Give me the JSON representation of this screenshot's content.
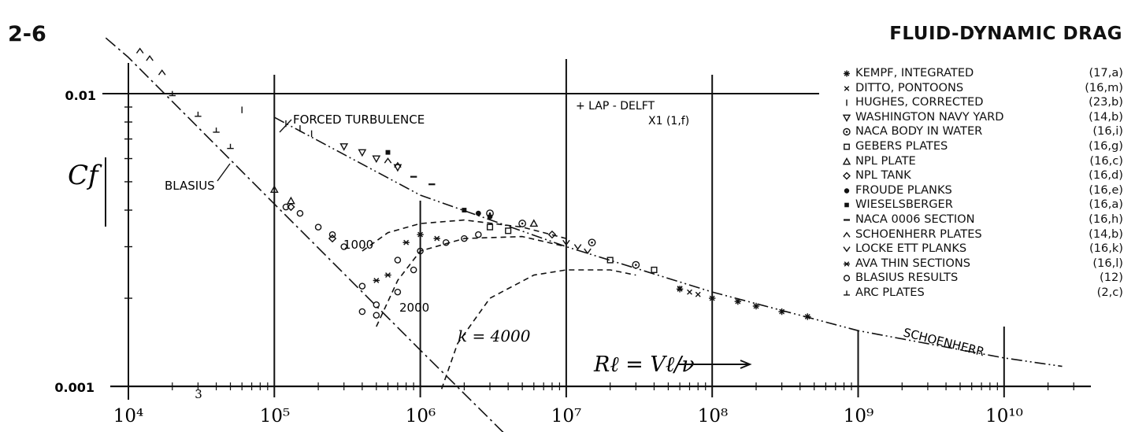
{
  "page": {
    "number": "2-6",
    "title": "FLUID-DYNAMIC DRAG"
  },
  "chart_data": {
    "type": "line",
    "title": "",
    "ylabel": "Cf",
    "xlabel": "Rℓ = Vℓ/ν",
    "x_scale": "log",
    "y_scale": "log",
    "xlim": [
      7000,
      30000000000
    ],
    "ylim": [
      0.00088,
      0.0136
    ],
    "x_tick_labels": [
      "10⁴",
      "3",
      "10⁵",
      "10⁶",
      "10⁷",
      "10⁸",
      "10⁹",
      "10¹⁰"
    ],
    "y_tick_labels": [
      "0.01",
      "0.001"
    ],
    "annotations": {
      "forced_turbulence": "FORCED TURBULENCE",
      "lap_delft": "+ LAP - DELFT",
      "lap_delft_ref": "X1 (1,f)",
      "blasius": "BLASIUS",
      "schoenherr": "SCHOENHERR",
      "k1000": "1000",
      "k2000": "2000",
      "k4000": "k = 4000"
    },
    "series": [
      {
        "name": "SCHOENHERR",
        "style": "dash-dot-dot",
        "x": [
          100000.0,
          1000000.0,
          10000000.0,
          100000000.0,
          1000000000.0,
          10000000000.0,
          25000000000.0
        ],
        "y": [
          0.0083,
          0.0045,
          0.003,
          0.0021,
          0.00155,
          0.00125,
          0.00117
        ]
      },
      {
        "name": "BLASIUS",
        "style": "dash-dot",
        "x": [
          7000,
          10000.0,
          100000.0,
          1000000.0,
          4000000.0
        ],
        "y": [
          0.0155,
          0.0133,
          0.0042,
          0.00133,
          0.00067
        ]
      },
      {
        "name": "1000",
        "style": "dashed",
        "x": [
          400000.0,
          600000.0,
          1000000.0,
          2000000.0,
          5000000.0,
          10000000.0
        ],
        "y": [
          0.0029,
          0.00335,
          0.0036,
          0.0037,
          0.0035,
          0.0032
        ]
      },
      {
        "name": "2000",
        "style": "dashed",
        "x": [
          500000.0,
          700000.0,
          1000000.0,
          2000000.0,
          5000000.0,
          10000000.0
        ],
        "y": [
          0.0016,
          0.0023,
          0.0029,
          0.0032,
          0.00325,
          0.003
        ]
      },
      {
        "name": "k = 4000",
        "style": "dashed",
        "x": [
          1400000.0,
          1800000.0,
          3000000.0,
          6000000.0,
          10000000.0,
          20000000.0,
          30000000.0
        ],
        "y": [
          0.00098,
          0.0014,
          0.002,
          0.0024,
          0.0025,
          0.0025,
          0.0024
        ]
      }
    ],
    "legend": [
      {
        "symbol": "asterisk",
        "name": "KEMPF, INTEGRATED",
        "ref": "(17,a)",
        "x": [
          60000000.0,
          100000000.0,
          150000000.0,
          200000000.0,
          300000000.0,
          450000000.0
        ],
        "y": [
          0.00215,
          0.002,
          0.00195,
          0.00188,
          0.0018,
          0.00173
        ]
      },
      {
        "symbol": "cross",
        "name": "DITTO, PONTOONS",
        "ref": "(16,m)",
        "x": [
          60000000.0,
          70000000.0,
          80000000.0
        ],
        "y": [
          0.00216,
          0.0021,
          0.00206
        ]
      },
      {
        "symbol": "bar",
        "name": "HUGHES, CORRECTED",
        "ref": "(23,b)",
        "x": [
          60000.0,
          120000.0,
          150000.0,
          180000.0
        ],
        "y": [
          0.0088,
          0.0079,
          0.0076,
          0.0073
        ]
      },
      {
        "symbol": "tri-down",
        "name": "WASHINGTON NAVY YARD",
        "ref": "(14,b)",
        "x": [
          300000.0,
          400000.0,
          500000.0,
          700000.0
        ],
        "y": [
          0.0066,
          0.0063,
          0.006,
          0.0056
        ]
      },
      {
        "symbol": "circle-dot",
        "name": "NACA BODY IN WATER",
        "ref": "(16,i)",
        "x": [
          3000000.0,
          5000000.0,
          15000000.0,
          30000000.0
        ],
        "y": [
          0.0039,
          0.0036,
          0.0031,
          0.0026
        ]
      },
      {
        "symbol": "square",
        "name": "GEBERS PLATES",
        "ref": "(16,g)",
        "x": [
          3000000.0,
          4000000.0,
          20000000.0,
          40000000.0
        ],
        "y": [
          0.0035,
          0.0034,
          0.0027,
          0.0025
        ]
      },
      {
        "symbol": "triangle",
        "name": "NPL PLATE",
        "ref": "(16,c)",
        "x": [
          100000.0,
          130000.0,
          6000000.0
        ],
        "y": [
          0.0047,
          0.0043,
          0.0036
        ]
      },
      {
        "symbol": "diamond",
        "name": "NPL TANK",
        "ref": "(16,d)",
        "x": [
          130000.0,
          250000.0,
          8000000.0
        ],
        "y": [
          0.0041,
          0.0032,
          0.0033
        ]
      },
      {
        "symbol": "dot",
        "name": "FROUDE PLANKS",
        "ref": "(16,e)",
        "x": [
          2500000.0,
          3000000.0
        ],
        "y": [
          0.0039,
          0.0038
        ]
      },
      {
        "symbol": "filled-square",
        "name": "WIESELSBERGER",
        "ref": "(16,a)",
        "x": [
          600000.0,
          2000000.0
        ],
        "y": [
          0.0063,
          0.004
        ]
      },
      {
        "symbol": "dash",
        "name": "NACA 0006 SECTION",
        "ref": "(16,h)",
        "x": [
          900000.0,
          1200000.0
        ],
        "y": [
          0.0052,
          0.0049
        ]
      },
      {
        "symbol": "caret-up",
        "name": "SCHOENHERR PLATES",
        "ref": "(14,b)",
        "x": [
          12000.0,
          14000.0,
          17000.0,
          600000.0,
          700000.0
        ],
        "y": [
          0.014,
          0.0132,
          0.0118,
          0.0059,
          0.0057
        ]
      },
      {
        "symbol": "caret-down",
        "name": "LOCKE ETT PLANKS",
        "ref": "(16,k)",
        "x": [
          10000000.0,
          12000000.0,
          14000000.0
        ],
        "y": [
          0.0031,
          0.003,
          0.0029
        ]
      },
      {
        "symbol": "star",
        "name": "AVA THIN SECTIONS",
        "ref": "(16,l)",
        "x": [
          500000.0,
          600000.0,
          800000.0,
          1000000.0,
          1300000.0
        ],
        "y": [
          0.0023,
          0.0024,
          0.0031,
          0.0033,
          0.0032
        ]
      },
      {
        "symbol": "circle",
        "name": "BLASIUS RESULTS",
        "ref": "(12)",
        "x": [
          120000.0,
          150000.0,
          200000.0,
          250000.0,
          300000.0,
          400000.0,
          500000.0,
          700000.0,
          1000000.0,
          1500000.0,
          2000000.0,
          2500000.0,
          400000.0,
          500000.0,
          700000.0,
          900000.0
        ],
        "y": [
          0.0041,
          0.0039,
          0.0035,
          0.0033,
          0.003,
          0.0022,
          0.0019,
          0.0027,
          0.0029,
          0.0031,
          0.0032,
          0.0033,
          0.0018,
          0.00175,
          0.0021,
          0.0025
        ]
      },
      {
        "symbol": "inverted-t",
        "name": "ARC PLATES",
        "ref": "(2,c)",
        "x": [
          20000.0,
          30000.0,
          40000.0,
          50000.0
        ],
        "y": [
          0.01,
          0.0085,
          0.0075,
          0.0066
        ]
      }
    ]
  }
}
